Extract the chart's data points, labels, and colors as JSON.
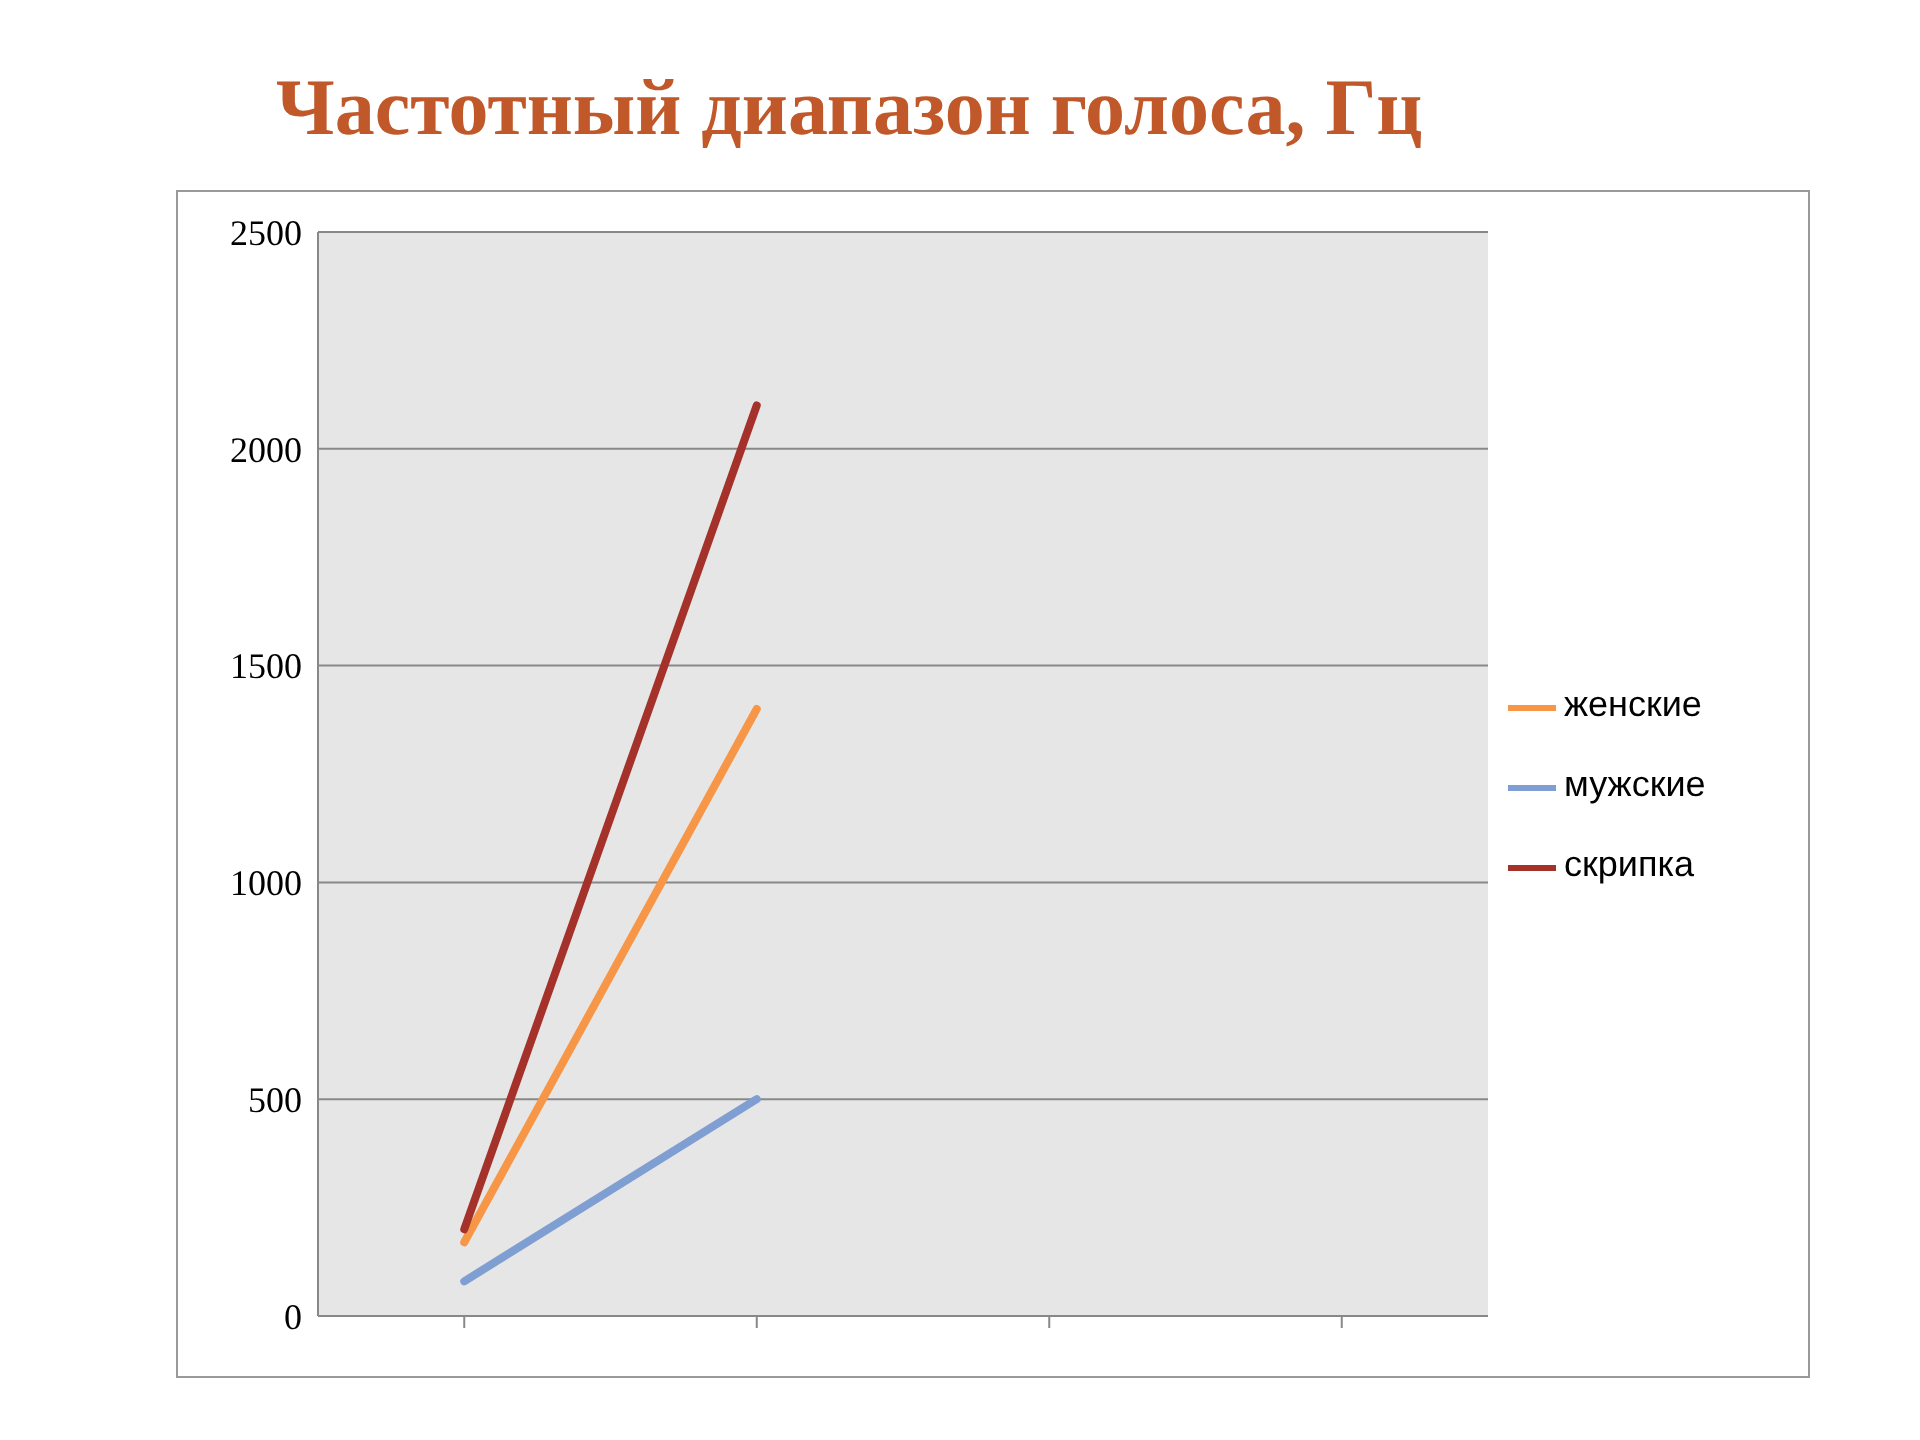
{
  "chart_data": {
    "type": "line",
    "title": "Частотный диапазон голоса, Гц",
    "categories": [
      null,
      null,
      null,
      null
    ],
    "series": [
      {
        "name": "женские",
        "color": "#f79646",
        "values": [
          170,
          1400,
          null,
          null
        ]
      },
      {
        "name": "мужские",
        "color": "#7f9fd3",
        "values": [
          80,
          500,
          null,
          null
        ]
      },
      {
        "name": "скрипка",
        "color": "#a5322a",
        "values": [
          200,
          2100,
          null,
          null
        ]
      }
    ],
    "ylim": [
      0,
      2500
    ],
    "yticks": [
      0,
      500,
      1000,
      1500,
      2000,
      2500
    ],
    "grid": "y",
    "legend": "right",
    "marker": "none",
    "line_style": "solid"
  }
}
